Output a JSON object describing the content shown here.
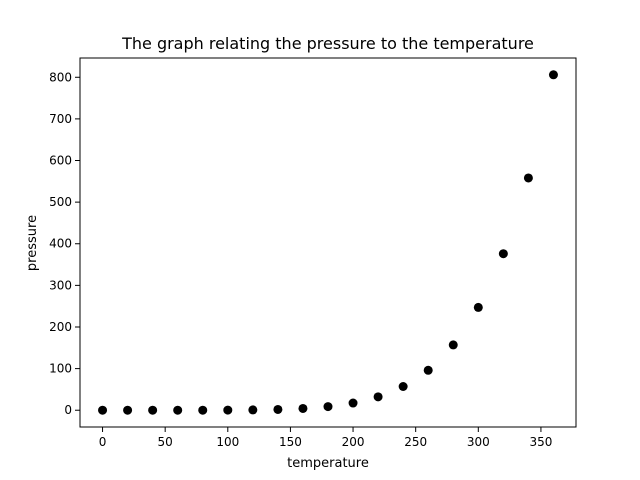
{
  "chart_data": {
    "type": "scatter",
    "title": "The graph relating the pressure to the temperature",
    "xlabel": "temperature",
    "ylabel": "pressure",
    "xlim": [
      -18,
      378
    ],
    "ylim": [
      -40.3,
      846.3
    ],
    "x_ticks": [
      0,
      50,
      100,
      150,
      200,
      250,
      300,
      350
    ],
    "y_ticks": [
      0,
      100,
      200,
      300,
      400,
      500,
      600,
      700,
      800
    ],
    "grid": false,
    "legend": "none",
    "marker_color": "#000000",
    "points": {
      "x": [
        0,
        20,
        40,
        60,
        80,
        100,
        120,
        140,
        160,
        180,
        200,
        220,
        240,
        260,
        280,
        300,
        320,
        340,
        360
      ],
      "y": [
        0.0002,
        0.0012,
        0.006,
        0.03,
        0.09,
        0.27,
        0.75,
        1.85,
        4.2,
        8.8,
        17.3,
        32.1,
        57,
        96,
        157,
        247,
        376,
        558,
        806
      ]
    }
  }
}
